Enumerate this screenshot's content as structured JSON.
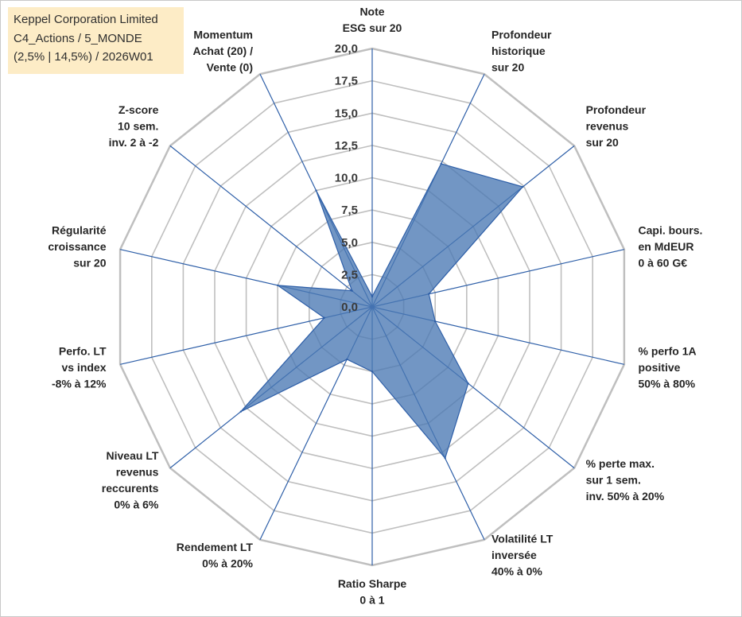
{
  "header": {
    "lines": [
      "Keppel Corporation Limited",
      "C4_Actions / 5_MONDE",
      "(2,5% | 14,5%) / 2026W01"
    ]
  },
  "colors": {
    "grid": "#bfbfbf",
    "spoke": "#2e5fa8",
    "fill": "#4a78b4",
    "outline": "#2e5fa8",
    "label_box": "#fdecc6"
  },
  "chart_data": {
    "type": "radar",
    "title": "Keppel Corporation Limited",
    "range": [
      0,
      20
    ],
    "tick_step": 2.5,
    "tick_labels": [
      "0,0",
      "2,5",
      "5,0",
      "7,5",
      "10,0",
      "12,5",
      "15,0",
      "17,5",
      "20,0"
    ],
    "axes": [
      {
        "label": [
          "Note",
          "ESG sur 20"
        ],
        "value": 0.8
      },
      {
        "label": [
          "Profondeur",
          "historique",
          "sur 20"
        ],
        "value": 12.3
      },
      {
        "label": [
          "Profondeur",
          "revenus",
          "sur 20"
        ],
        "value": 14.9
      },
      {
        "label": [
          "Capi. bours.",
          "en MdEUR",
          "0 à 60 G€"
        ],
        "value": 4.5
      },
      {
        "label": [
          "% perfo 1A",
          "positive",
          "50% à 80%"
        ],
        "value": 5.0
      },
      {
        "label": [
          "% perte max.",
          "sur 1 sem.",
          "inv. 50% à 20%"
        ],
        "value": 9.5
      },
      {
        "label": [
          "Volatilité LT",
          "inversée",
          "40% à 0%"
        ],
        "value": 13.0
      },
      {
        "label": [
          "Ratio Sharpe",
          "0 à 1"
        ],
        "value": 5.0
      },
      {
        "label": [
          "Rendement LT",
          "0% à 20%"
        ],
        "value": 4.5
      },
      {
        "label": [
          "Niveau LT",
          "revenus",
          "reccurents",
          "0% à 6%"
        ],
        "value": 13.0
      },
      {
        "label": [
          "Perfo. LT",
          "vs index",
          "-8% à 12%"
        ],
        "value": 3.8
      },
      {
        "label": [
          "Régularité",
          "croissance",
          "sur 20"
        ],
        "value": 7.5
      },
      {
        "label": [
          "Z-score",
          "10 sem.",
          "inv. 2 à -2"
        ],
        "value": 2.0
      },
      {
        "label": [
          "Momentum",
          "Achat (20) /",
          "Vente (0)"
        ],
        "value": 10.0
      }
    ]
  }
}
